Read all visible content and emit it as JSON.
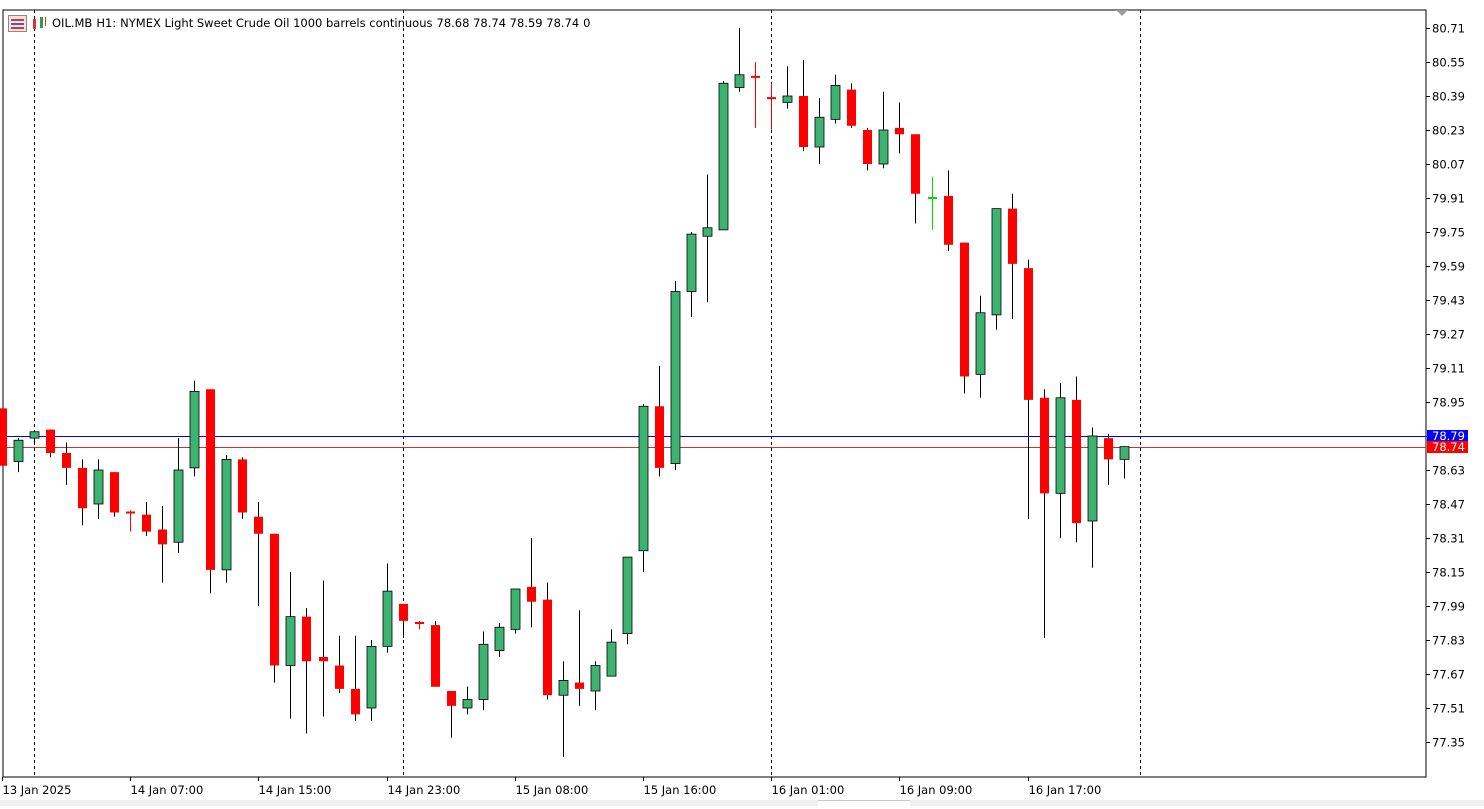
{
  "window": {
    "symbol": "OIL.MB",
    "timeframe": "H1:",
    "description": "NYMEX Light Sweet Crude Oil 1000 barrels continuous",
    "ohlc": "78.68 78.74 78.59 78.74",
    "volume": "0"
  },
  "icons": {
    "menu": "chart-menu-icon",
    "chart_type": "candlestick-icon"
  },
  "colors": {
    "bull": "#3CB371",
    "bear": "#FF0000",
    "wick": "#000000",
    "ask_line": "#0000FF",
    "bid_line": "#C83232",
    "grid": "#000000",
    "doji": "#00DD00"
  },
  "price_lines": {
    "ask": {
      "value": 78.79,
      "label": "78.79"
    },
    "bid": {
      "value": 78.74,
      "label": "78.74"
    }
  },
  "chart_data": {
    "type": "candlestick",
    "y_ticks": [
      "80.71",
      "80.55",
      "80.39",
      "80.23",
      "80.07",
      "79.91",
      "79.75",
      "79.59",
      "79.43",
      "79.27",
      "79.11",
      "78.95",
      "78.79",
      "78.63",
      "78.47",
      "78.31",
      "78.15",
      "77.99",
      "77.83",
      "77.67",
      "77.51",
      "77.35"
    ],
    "x_ticks": [
      "13 Jan 2025",
      "14 Jan 07:00",
      "14 Jan 15:00",
      "14 Jan 23:00",
      "15 Jan 08:00",
      "15 Jan 16:00",
      "16 Jan 01:00",
      "16 Jan 09:00",
      "16 Jan 17:00"
    ],
    "day_separators": [
      2,
      25,
      48,
      71
    ],
    "candles": [
      {
        "o": 78.92,
        "h": 78.92,
        "l": 78.65,
        "c": 78.65
      },
      {
        "o": 78.67,
        "h": 78.78,
        "l": 78.62,
        "c": 78.77
      },
      {
        "o": 78.78,
        "h": 78.81,
        "l": 78.76,
        "c": 78.81
      },
      {
        "o": 78.82,
        "h": 78.82,
        "l": 78.69,
        "c": 78.71
      },
      {
        "o": 78.71,
        "h": 78.76,
        "l": 78.56,
        "c": 78.64
      },
      {
        "o": 78.64,
        "h": 78.68,
        "l": 78.37,
        "c": 78.45
      },
      {
        "o": 78.47,
        "h": 78.68,
        "l": 78.4,
        "c": 78.63
      },
      {
        "o": 78.62,
        "h": 78.62,
        "l": 78.41,
        "c": 78.43
      },
      {
        "o": 78.43,
        "h": 78.44,
        "l": 78.34,
        "c": 78.42
      },
      {
        "o": 78.42,
        "h": 78.48,
        "l": 78.32,
        "c": 78.34
      },
      {
        "o": 78.35,
        "h": 78.46,
        "l": 78.1,
        "c": 78.28
      },
      {
        "o": 78.29,
        "h": 78.78,
        "l": 78.24,
        "c": 78.63
      },
      {
        "o": 78.64,
        "h": 79.05,
        "l": 78.6,
        "c": 79.0
      },
      {
        "o": 79.01,
        "h": 79.01,
        "l": 78.05,
        "c": 78.16
      },
      {
        "o": 78.16,
        "h": 78.7,
        "l": 78.1,
        "c": 78.68
      },
      {
        "o": 78.68,
        "h": 78.69,
        "l": 78.4,
        "c": 78.43
      },
      {
        "o": 78.41,
        "h": 78.48,
        "l": 77.99,
        "c": 78.33
      },
      {
        "o": 78.33,
        "h": 78.33,
        "l": 77.63,
        "c": 77.71
      },
      {
        "o": 77.71,
        "h": 78.15,
        "l": 77.46,
        "c": 77.94
      },
      {
        "o": 77.94,
        "h": 77.98,
        "l": 77.39,
        "c": 77.73
      },
      {
        "o": 77.75,
        "h": 78.11,
        "l": 77.47,
        "c": 77.73
      },
      {
        "o": 77.71,
        "h": 77.85,
        "l": 77.58,
        "c": 77.6
      },
      {
        "o": 77.6,
        "h": 77.85,
        "l": 77.45,
        "c": 77.48
      },
      {
        "o": 77.51,
        "h": 77.83,
        "l": 77.45,
        "c": 77.8
      },
      {
        "o": 77.8,
        "h": 78.19,
        "l": 77.77,
        "c": 78.06
      },
      {
        "o": 78.0,
        "h": 78.0,
        "l": 77.84,
        "c": 77.92
      },
      {
        "o": 77.9,
        "h": 77.92,
        "l": 77.88,
        "c": 77.91
      },
      {
        "o": 77.9,
        "h": 77.92,
        "l": 77.61,
        "c": 77.61
      },
      {
        "o": 77.59,
        "h": 77.59,
        "l": 77.37,
        "c": 77.52
      },
      {
        "o": 77.51,
        "h": 77.61,
        "l": 77.48,
        "c": 77.55
      },
      {
        "o": 77.55,
        "h": 77.87,
        "l": 77.5,
        "c": 77.81
      },
      {
        "o": 77.78,
        "h": 77.91,
        "l": 77.75,
        "c": 77.89
      },
      {
        "o": 77.88,
        "h": 78.07,
        "l": 77.86,
        "c": 78.07
      },
      {
        "o": 78.08,
        "h": 78.31,
        "l": 77.89,
        "c": 78.01
      },
      {
        "o": 78.02,
        "h": 78.1,
        "l": 77.55,
        "c": 77.57
      },
      {
        "o": 77.57,
        "h": 77.73,
        "l": 77.28,
        "c": 77.64
      },
      {
        "o": 77.63,
        "h": 77.97,
        "l": 77.52,
        "c": 77.6
      },
      {
        "o": 77.59,
        "h": 77.73,
        "l": 77.5,
        "c": 77.71
      },
      {
        "o": 77.66,
        "h": 77.88,
        "l": 77.66,
        "c": 77.82
      },
      {
        "o": 77.86,
        "h": 78.22,
        "l": 77.81,
        "c": 78.22
      },
      {
        "o": 78.25,
        "h": 78.94,
        "l": 78.15,
        "c": 78.93
      },
      {
        "o": 78.93,
        "h": 79.12,
        "l": 78.6,
        "c": 78.64
      },
      {
        "o": 78.66,
        "h": 79.52,
        "l": 78.63,
        "c": 79.47
      },
      {
        "o": 79.47,
        "h": 79.75,
        "l": 79.35,
        "c": 79.74
      },
      {
        "o": 79.73,
        "h": 80.02,
        "l": 79.42,
        "c": 79.77
      },
      {
        "o": 79.76,
        "h": 80.46,
        "l": 79.76,
        "c": 80.45
      },
      {
        "o": 80.43,
        "h": 80.71,
        "l": 80.41,
        "c": 80.49
      },
      {
        "o": 80.48,
        "h": 80.55,
        "l": 80.24,
        "c": 80.47
      },
      {
        "o": 80.37,
        "h": 80.45,
        "l": 80.23,
        "c": 80.38
      },
      {
        "o": 80.36,
        "h": 80.53,
        "l": 80.33,
        "c": 80.39
      },
      {
        "o": 80.39,
        "h": 80.56,
        "l": 80.13,
        "c": 80.15
      },
      {
        "o": 80.15,
        "h": 80.38,
        "l": 80.07,
        "c": 80.29
      },
      {
        "o": 80.28,
        "h": 80.49,
        "l": 80.26,
        "c": 80.44
      },
      {
        "o": 80.42,
        "h": 80.45,
        "l": 80.24,
        "c": 80.25
      },
      {
        "o": 80.23,
        "h": 80.24,
        "l": 80.04,
        "c": 80.07
      },
      {
        "o": 80.07,
        "h": 80.41,
        "l": 80.05,
        "c": 80.23
      },
      {
        "o": 80.24,
        "h": 80.36,
        "l": 80.12,
        "c": 80.21
      },
      {
        "o": 80.21,
        "h": 80.21,
        "l": 79.79,
        "c": 79.93
      },
      {
        "o": 79.91,
        "h": 80.01,
        "l": 79.76,
        "c": 79.91
      },
      {
        "o": 79.92,
        "h": 80.04,
        "l": 79.66,
        "c": 79.69
      },
      {
        "o": 79.7,
        "h": 79.7,
        "l": 78.99,
        "c": 79.07
      },
      {
        "o": 79.08,
        "h": 79.45,
        "l": 78.97,
        "c": 79.37
      },
      {
        "o": 79.36,
        "h": 79.86,
        "l": 79.29,
        "c": 79.86
      },
      {
        "o": 79.86,
        "h": 79.93,
        "l": 79.34,
        "c": 79.6
      },
      {
        "o": 79.58,
        "h": 79.62,
        "l": 78.4,
        "c": 78.96
      },
      {
        "o": 78.97,
        "h": 79.01,
        "l": 77.84,
        "c": 78.52
      },
      {
        "o": 78.52,
        "h": 79.04,
        "l": 78.31,
        "c": 78.97
      },
      {
        "o": 78.96,
        "h": 79.07,
        "l": 78.29,
        "c": 78.38
      },
      {
        "o": 78.39,
        "h": 78.83,
        "l": 78.17,
        "c": 78.79
      },
      {
        "o": 78.78,
        "h": 78.8,
        "l": 78.56,
        "c": 78.68
      },
      {
        "o": 78.68,
        "h": 78.74,
        "l": 78.59,
        "c": 78.74
      }
    ]
  }
}
